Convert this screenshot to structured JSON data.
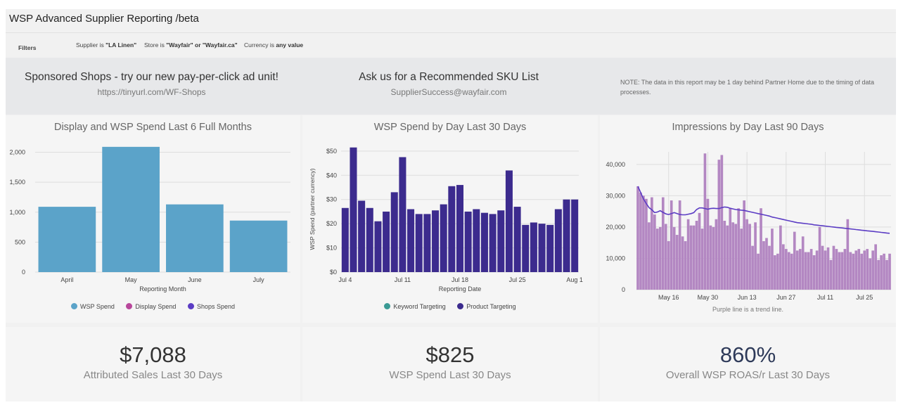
{
  "header": {
    "title": "WSP Advanced Supplier Reporting /beta"
  },
  "filters": {
    "label": "Filters",
    "chips": [
      {
        "field": "Supplier",
        "op": "is",
        "value": "\"LA Linen\""
      },
      {
        "field": "Store",
        "op": "is",
        "value": "\"Wayfair\" or \"Wayfair.ca\""
      },
      {
        "field": "Currency",
        "op": "is",
        "value": "any value"
      }
    ]
  },
  "banner": {
    "promo1": {
      "heading": "Sponsored Shops - try our new pay-per-click ad unit!",
      "sub": "https://tinyurl.com/WF-Shops"
    },
    "promo2": {
      "heading": "Ask us for a Recommended SKU List",
      "sub": "SupplierSuccess@wayfair.com"
    },
    "note": "NOTE: The data in this report may be 1 day behind Partner Home due to the timing of data processes."
  },
  "chart_data": [
    {
      "type": "bar",
      "title": "Display and WSP Spend Last 6 Full Months",
      "xlabel": "Reporting Month",
      "ylabel": "",
      "categories": [
        "April",
        "May",
        "June",
        "July"
      ],
      "series": [
        {
          "name": "WSP Spend",
          "color": "#5ba3c9",
          "values": [
            1090,
            2090,
            1130,
            860
          ]
        },
        {
          "name": "Display Spend",
          "color": "#b8479b",
          "values": [
            0,
            0,
            0,
            0
          ]
        },
        {
          "name": "Shops Spend",
          "color": "#5b3cc4",
          "values": [
            0,
            0,
            0,
            0
          ]
        }
      ],
      "ylim": [
        0,
        2100
      ],
      "yticks": [
        0,
        500,
        1000,
        1500,
        2000
      ],
      "ytick_labels": [
        "0",
        "500",
        "1,000",
        "1,500",
        "2,000"
      ],
      "grid": true,
      "legend": "bottom"
    },
    {
      "type": "bar",
      "title": "WSP Spend by Day Last 30 Days",
      "xlabel": "Reporting Date",
      "ylabel": "WSP Spend (partner currency)",
      "x": [
        "Jul 4",
        "Jul 5",
        "Jul 6",
        "Jul 7",
        "Jul 8",
        "Jul 9",
        "Jul 10",
        "Jul 11",
        "Jul 12",
        "Jul 13",
        "Jul 14",
        "Jul 15",
        "Jul 16",
        "Jul 17",
        "Jul 18",
        "Jul 19",
        "Jul 20",
        "Jul 21",
        "Jul 22",
        "Jul 23",
        "Jul 24",
        "Jul 25",
        "Jul 26",
        "Jul 27",
        "Jul 28",
        "Jul 29",
        "Jul 30",
        "Jul 31",
        "Aug 1"
      ],
      "xtick_labels": [
        "Jul 4",
        "Jul 11",
        "Jul 18",
        "Jul 25",
        "Aug 1"
      ],
      "xtick_index": [
        0,
        7,
        14,
        21,
        28
      ],
      "series": [
        {
          "name": "Keyword Targeting",
          "color": "#3a9a94",
          "values": [
            0,
            0,
            0,
            0,
            0,
            0,
            0,
            0,
            0,
            0,
            0,
            0,
            0,
            0,
            0,
            0,
            0,
            0,
            0,
            0,
            0,
            0,
            0,
            0,
            0,
            0,
            0,
            0,
            0
          ]
        },
        {
          "name": "Product Targeting",
          "color": "#3c2b8e",
          "values": [
            26.5,
            51.5,
            29.5,
            26.5,
            21,
            25,
            33,
            47.5,
            26,
            24,
            24,
            25.5,
            28,
            35.5,
            36,
            25,
            26,
            24.5,
            24,
            25.5,
            42,
            27,
            19.5,
            20.5,
            20,
            19.5,
            26,
            30,
            30
          ]
        }
      ],
      "ylim": [
        0,
        52
      ],
      "yticks": [
        0,
        10,
        20,
        30,
        40,
        50
      ],
      "ytick_labels": [
        "$0",
        "$10",
        "$20",
        "$30",
        "$40",
        "$50"
      ],
      "grid": true,
      "legend": "bottom"
    },
    {
      "type": "bar",
      "title": "Impressions by Day Last 90 Days",
      "xtick_labels": [
        "May 16",
        "May 30",
        "Jun 13",
        "Jun 27",
        "Jul 11",
        "Jul 25"
      ],
      "xtick_index": [
        11,
        25,
        39,
        53,
        67,
        81
      ],
      "series": [
        {
          "name": "Impressions",
          "color": "#b387c2",
          "values": [
            33000,
            31000,
            30000,
            29000,
            21500,
            29500,
            24000,
            19500,
            20000,
            29500,
            21000,
            15500,
            28500,
            20000,
            17500,
            28500,
            17000,
            15500,
            22500,
            20500,
            20500,
            22000,
            24500,
            19500,
            43500,
            29000,
            20500,
            20000,
            22500,
            41500,
            43000,
            22000,
            20500,
            26000,
            21500,
            21000,
            26000,
            19500,
            28500,
            22500,
            21000,
            14000,
            21500,
            11500,
            26000,
            15500,
            16500,
            14000,
            19500,
            11000,
            11500,
            20500,
            14500,
            13000,
            12000,
            11500,
            18500,
            12500,
            13000,
            17000,
            12000,
            12000,
            13000,
            11000,
            12500,
            20000,
            14000,
            12500,
            13500,
            9500,
            14000,
            13000,
            12000,
            12000,
            13000,
            22500,
            12000,
            11500,
            12500,
            13000,
            11500,
            12500,
            13000,
            10000,
            12500,
            14500,
            9500,
            11000,
            11500,
            9500,
            11500
          ]
        },
        {
          "name": "Trend",
          "color": "#5b3cc4",
          "values": [
            33000,
            31000,
            29000,
            27500,
            26200,
            25500,
            24600,
            24800,
            25200,
            24700,
            24200,
            24000,
            24300,
            24600,
            24300,
            24000,
            23900,
            23900,
            24100,
            24300,
            24600,
            25600,
            26100,
            26100,
            25900,
            25700,
            25900,
            26000,
            25900,
            25900,
            26200,
            26400,
            26300,
            26000,
            25800,
            25600,
            25500,
            25400,
            25300,
            25100,
            24900,
            24700,
            24500,
            24300,
            24100,
            23900,
            23700,
            23500,
            23200,
            23000,
            22800,
            22600,
            22400,
            22200,
            22000,
            21800,
            21600,
            21400,
            21300,
            21200,
            21100,
            21000,
            20900,
            20700,
            20600,
            20500,
            20400,
            20300,
            20200,
            20100,
            20000,
            19900,
            19800,
            19700,
            19600,
            19500,
            19400,
            19300,
            19200,
            19100,
            19000,
            18900,
            18800,
            18700,
            18600,
            18500,
            18400,
            18300,
            18200,
            18100,
            18000
          ]
        }
      ],
      "ylim": [
        0,
        44000
      ],
      "yticks": [
        0,
        10000,
        20000,
        30000,
        40000
      ],
      "ytick_labels": [
        "0",
        "10,000",
        "20,000",
        "30,000",
        "40,000"
      ],
      "grid": true,
      "annotation": "Purple line is a trend line."
    }
  ],
  "kpis": [
    {
      "value": "$7,088",
      "label": "Attributed Sales Last 30 Days"
    },
    {
      "value": "$825",
      "label": "WSP Spend Last 30 Days"
    },
    {
      "value": "860%",
      "label": "Overall WSP ROAS/r Last 30 Days"
    }
  ]
}
